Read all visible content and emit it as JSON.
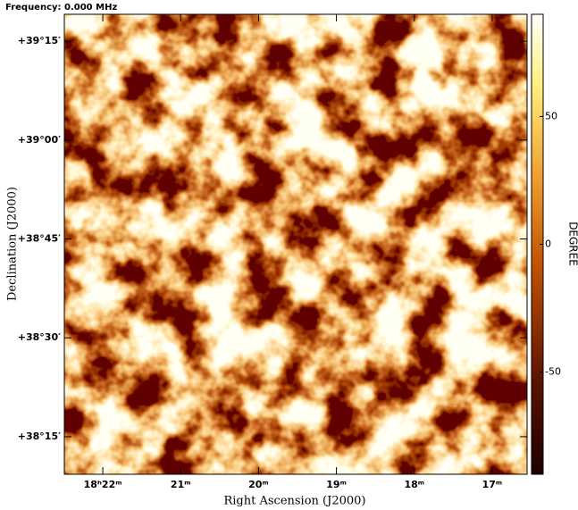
{
  "chart_data": {
    "type": "image",
    "header": "Frequency: 0.000 MHz",
    "x_label": "Right Ascension (J2000)",
    "y_label": "Declination (J2000)",
    "xlim": [
      22.494,
      16.552
    ],
    "xticks": [
      {
        "value": 22,
        "label": "18ʰ22ᵐ"
      },
      {
        "value": 21,
        "label": "21ᵐ"
      },
      {
        "value": 20,
        "label": "20ᵐ"
      },
      {
        "value": 19,
        "label": "19ᵐ"
      },
      {
        "value": 18,
        "label": "18ᵐ"
      },
      {
        "value": 17,
        "label": "17ᵐ"
      }
    ],
    "ylim": [
      38.155,
      39.318
    ],
    "yticks": [
      {
        "value": 39.25,
        "label": "+39°15′"
      },
      {
        "value": 39.0,
        "label": "+39°00′"
      },
      {
        "value": 38.75,
        "label": "+38°45′"
      },
      {
        "value": 38.5,
        "label": "+38°30′"
      },
      {
        "value": 38.25,
        "label": "+38°15′"
      }
    ],
    "colorbar": {
      "label": "DEGREE",
      "lim": [
        -90,
        90
      ],
      "ticks": [
        -50,
        0,
        50
      ]
    }
  }
}
